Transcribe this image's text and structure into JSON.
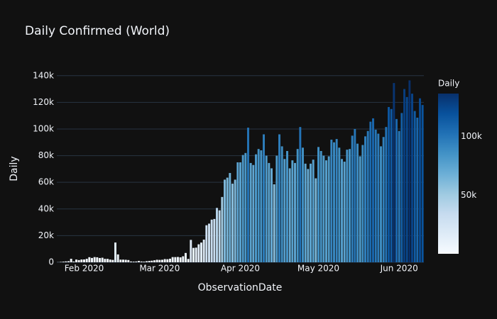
{
  "chart_data": {
    "type": "bar",
    "title": "Daily Confirmed (World)",
    "xlabel": "ObservationDate",
    "ylabel": "Daily",
    "colorbar_title": "Daily",
    "colorscale": [
      "#f7fbff",
      "#deebf7",
      "#c6dbef",
      "#9ecae1",
      "#6baed6",
      "#4292c6",
      "#2171b5",
      "#08519c",
      "#08306b"
    ],
    "grid": true,
    "x": [
      "2020-01-22",
      "2020-01-23",
      "2020-01-24",
      "2020-01-25",
      "2020-01-26",
      "2020-01-27",
      "2020-01-28",
      "2020-01-29",
      "2020-01-30",
      "2020-01-31",
      "2020-02-01",
      "2020-02-02",
      "2020-02-03",
      "2020-02-04",
      "2020-02-05",
      "2020-02-06",
      "2020-02-07",
      "2020-02-08",
      "2020-02-09",
      "2020-02-10",
      "2020-02-11",
      "2020-02-12",
      "2020-02-13",
      "2020-02-14",
      "2020-02-15",
      "2020-02-16",
      "2020-02-17",
      "2020-02-18",
      "2020-02-19",
      "2020-02-20",
      "2020-02-21",
      "2020-02-22",
      "2020-02-23",
      "2020-02-24",
      "2020-02-25",
      "2020-02-26",
      "2020-02-27",
      "2020-02-28",
      "2020-02-29",
      "2020-03-01",
      "2020-03-02",
      "2020-03-03",
      "2020-03-04",
      "2020-03-05",
      "2020-03-06",
      "2020-03-07",
      "2020-03-08",
      "2020-03-09",
      "2020-03-10",
      "2020-03-11",
      "2020-03-12",
      "2020-03-13",
      "2020-03-14",
      "2020-03-15",
      "2020-03-16",
      "2020-03-17",
      "2020-03-18",
      "2020-03-19",
      "2020-03-20",
      "2020-03-21",
      "2020-03-22",
      "2020-03-23",
      "2020-03-24",
      "2020-03-25",
      "2020-03-26",
      "2020-03-27",
      "2020-03-28",
      "2020-03-29",
      "2020-03-30",
      "2020-03-31",
      "2020-04-01",
      "2020-04-02",
      "2020-04-03",
      "2020-04-04",
      "2020-04-05",
      "2020-04-06",
      "2020-04-07",
      "2020-04-08",
      "2020-04-09",
      "2020-04-10",
      "2020-04-11",
      "2020-04-12",
      "2020-04-13",
      "2020-04-14",
      "2020-04-15",
      "2020-04-16",
      "2020-04-17",
      "2020-04-18",
      "2020-04-19",
      "2020-04-20",
      "2020-04-21",
      "2020-04-22",
      "2020-04-23",
      "2020-04-24",
      "2020-04-25",
      "2020-04-26",
      "2020-04-27",
      "2020-04-28",
      "2020-04-29",
      "2020-04-30",
      "2020-05-01",
      "2020-05-02",
      "2020-05-03",
      "2020-05-04",
      "2020-05-05",
      "2020-05-06",
      "2020-05-07",
      "2020-05-08",
      "2020-05-09",
      "2020-05-10",
      "2020-05-11",
      "2020-05-12",
      "2020-05-13",
      "2020-05-14",
      "2020-05-15",
      "2020-05-16",
      "2020-05-17",
      "2020-05-18",
      "2020-05-19",
      "2020-05-20",
      "2020-05-21",
      "2020-05-22",
      "2020-05-23",
      "2020-05-24",
      "2020-05-25",
      "2020-05-26",
      "2020-05-27",
      "2020-05-28",
      "2020-05-29",
      "2020-05-30",
      "2020-05-31",
      "2020-06-01",
      "2020-06-02",
      "2020-06-03",
      "2020-06-04",
      "2020-06-05",
      "2020-06-06",
      "2020-06-07",
      "2020-06-08",
      "2020-06-09",
      "2020-06-10"
    ],
    "values": [
      100,
      277,
      486,
      669,
      802,
      2632,
      578,
      2054,
      1661,
      2089,
      2120,
      2608,
      3818,
      3243,
      3907,
      3751,
      3218,
      3442,
      2564,
      2549,
      2067,
      1800,
      14840,
      5900,
      2000,
      2000,
      1900,
      1700,
      600,
      500,
      600,
      1000,
      600,
      500,
      800,
      1000,
      1200,
      1500,
      1900,
      1800,
      1900,
      2400,
      2300,
      2700,
      3900,
      3900,
      4000,
      3700,
      4500,
      7000,
      2500,
      16800,
      10800,
      11000,
      13500,
      14800,
      17000,
      27800,
      29000,
      32000,
      32500,
      40800,
      39000,
      49000,
      62000,
      63500,
      67000,
      59000,
      62000,
      75000,
      75000,
      80500,
      82000,
      101000,
      74500,
      73000,
      81000,
      85000,
      84000,
      96000,
      80000,
      74500,
      70500,
      58500,
      80000,
      96000,
      87000,
      77500,
      83500,
      70500,
      76500,
      74500,
      85000,
      101500,
      86000,
      74000,
      70000,
      74000,
      77000,
      63000,
      86500,
      83500,
      80000,
      76500,
      79500,
      92000,
      90000,
      92500,
      86000,
      77500,
      75500,
      84500,
      85000,
      95000,
      100000,
      89000,
      79500,
      88000,
      94500,
      98500,
      105500,
      108000,
      99500,
      96500,
      87000,
      94000,
      101500,
      116500,
      115000,
      134500,
      107500,
      98500,
      112000,
      130000,
      124000,
      136500,
      126500,
      113500,
      108500,
      123000,
      118000
    ],
    "xlim": [
      "2020-01-21T12:00:00Z",
      "2020-06-10T12:00:00Z"
    ],
    "xticks": [
      {
        "value": "2020-02-01",
        "label": "Feb 2020"
      },
      {
        "value": "2020-03-01",
        "label": "Mar 2020"
      },
      {
        "value": "2020-04-01",
        "label": "Apr 2020"
      },
      {
        "value": "2020-05-01",
        "label": "May 2020"
      },
      {
        "value": "2020-06-01",
        "label": "Jun 2020"
      }
    ],
    "ylim": [
      0,
      143600
    ],
    "yticks": [
      0,
      {
        "value": 20000,
        "label": "20k"
      },
      {
        "value": 40000,
        "label": "40k"
      },
      {
        "value": 60000,
        "label": "60k"
      },
      {
        "value": 80000,
        "label": "80k"
      },
      {
        "value": 100000,
        "label": "100k"
      },
      {
        "value": 120000,
        "label": "120k"
      },
      {
        "value": 140000,
        "label": "140k"
      }
    ],
    "colorbar_ticks": [
      {
        "value": 50000,
        "label": "50k"
      },
      {
        "value": 100000,
        "label": "100k"
      }
    ]
  }
}
